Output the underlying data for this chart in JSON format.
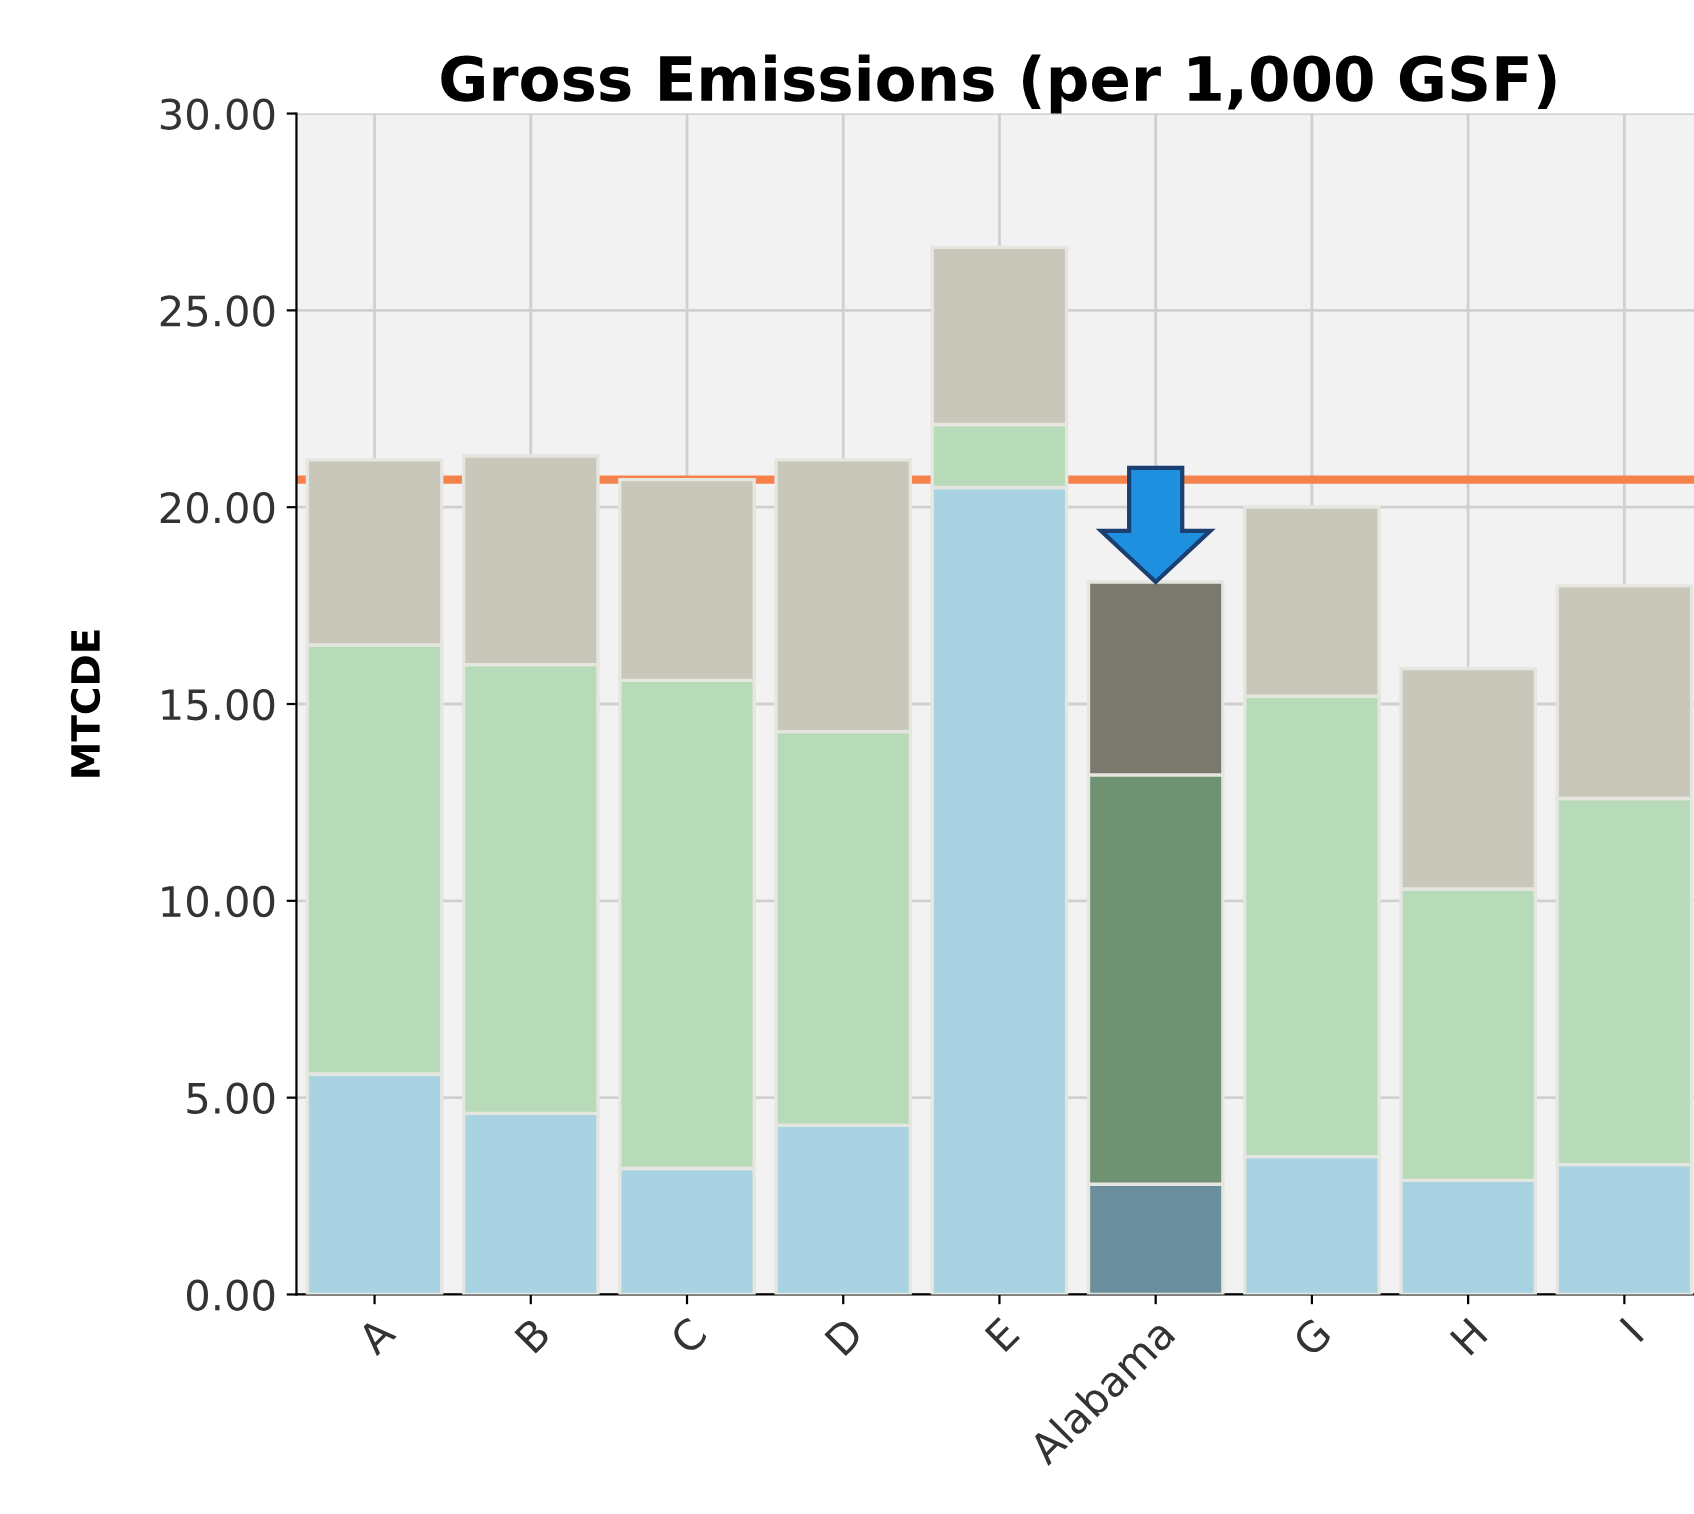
{
  "chart_data": {
    "type": "bar",
    "title": "Gross Emissions (per 1,000 GSF)",
    "ylabel": "MTCDE",
    "categories": [
      "A",
      "B",
      "C",
      "D",
      "E",
      "Alabama",
      "G",
      "H",
      "I"
    ],
    "stacked": true,
    "series": [
      {
        "colors": [
          "#a9d3e2",
          "#a9d3e2",
          "#a9d3e2",
          "#a9d3e2",
          "#a9d3e2",
          "#6b8e9c",
          "#a9d3e2",
          "#a9d3e2",
          "#a9d3e2"
        ],
        "values": [
          5.6,
          4.6,
          3.2,
          4.3,
          20.5,
          2.8,
          3.5,
          2.9,
          3.3
        ]
      },
      {
        "colors": [
          "#b7dab9",
          "#b7dab9",
          "#b7dab9",
          "#b7dab9",
          "#b7dab9",
          "#6f9272",
          "#b7dab9",
          "#b7dab9",
          "#b7dab9"
        ],
        "values": [
          10.9,
          11.4,
          12.4,
          10.0,
          1.6,
          10.4,
          11.7,
          7.4,
          9.3
        ]
      },
      {
        "colors": [
          "#c9c7b9",
          "#c9c7b9",
          "#c9c7b9",
          "#c9c7b9",
          "#c9c7b9",
          "#7b796d",
          "#c9c7b9",
          "#c9c7b9",
          "#c9c7b9"
        ],
        "values": [
          4.7,
          5.3,
          5.1,
          6.9,
          4.5,
          4.9,
          4.8,
          5.6,
          5.4
        ]
      }
    ],
    "ylim": [
      0,
      30
    ],
    "yticks": [
      {
        "value": 0,
        "label": "0.00"
      },
      {
        "value": 5,
        "label": "5.00"
      },
      {
        "value": 10,
        "label": "10.00"
      },
      {
        "value": 15,
        "label": "15.00"
      },
      {
        "value": 20,
        "label": "20.00"
      },
      {
        "value": 25,
        "label": "25.00"
      },
      {
        "value": 30,
        "label": "30.00"
      }
    ],
    "ref_lines": [
      {
        "axis": "y",
        "value": 20.7,
        "color": "#f4824a"
      }
    ],
    "grid": true
  }
}
